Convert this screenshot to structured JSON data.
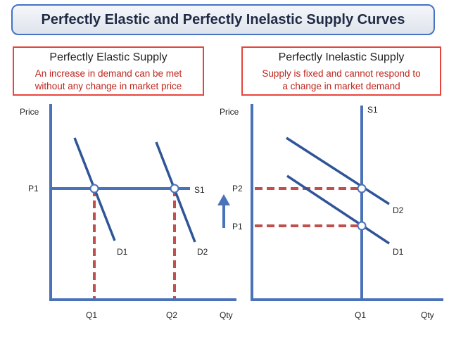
{
  "title": "Perfectly Elastic and Perfectly Inelastic Supply Curves",
  "left_panel": {
    "heading": "Perfectly Elastic Supply",
    "desc_line1": "An increase in demand can be met",
    "desc_line2": "without any change in market price",
    "y_axis_label": "Price",
    "x_axis_label": "Qty",
    "price_label": "P1",
    "supply_label": "S1",
    "demand1_label": "D1",
    "demand2_label": "D2",
    "q1_label": "Q1",
    "q2_label": "Q2"
  },
  "right_panel": {
    "heading": "Perfectly Inelastic Supply",
    "desc_line1": "Supply is fixed and cannot respond to",
    "desc_line2": "a change in market demand",
    "y_axis_label": "Price",
    "x_axis_label": "Qty",
    "p1_label": "P1",
    "p2_label": "P2",
    "supply_label": "S1",
    "demand1_label": "D1",
    "demand2_label": "D2",
    "q1_label": "Q1"
  },
  "colors": {
    "axis": "#4a72b8",
    "curve": "#4a72b8",
    "dashed": "#c0504d",
    "arrow": "#4a72b8",
    "box_border": "#e8433c",
    "desc_text": "#c0241c"
  }
}
